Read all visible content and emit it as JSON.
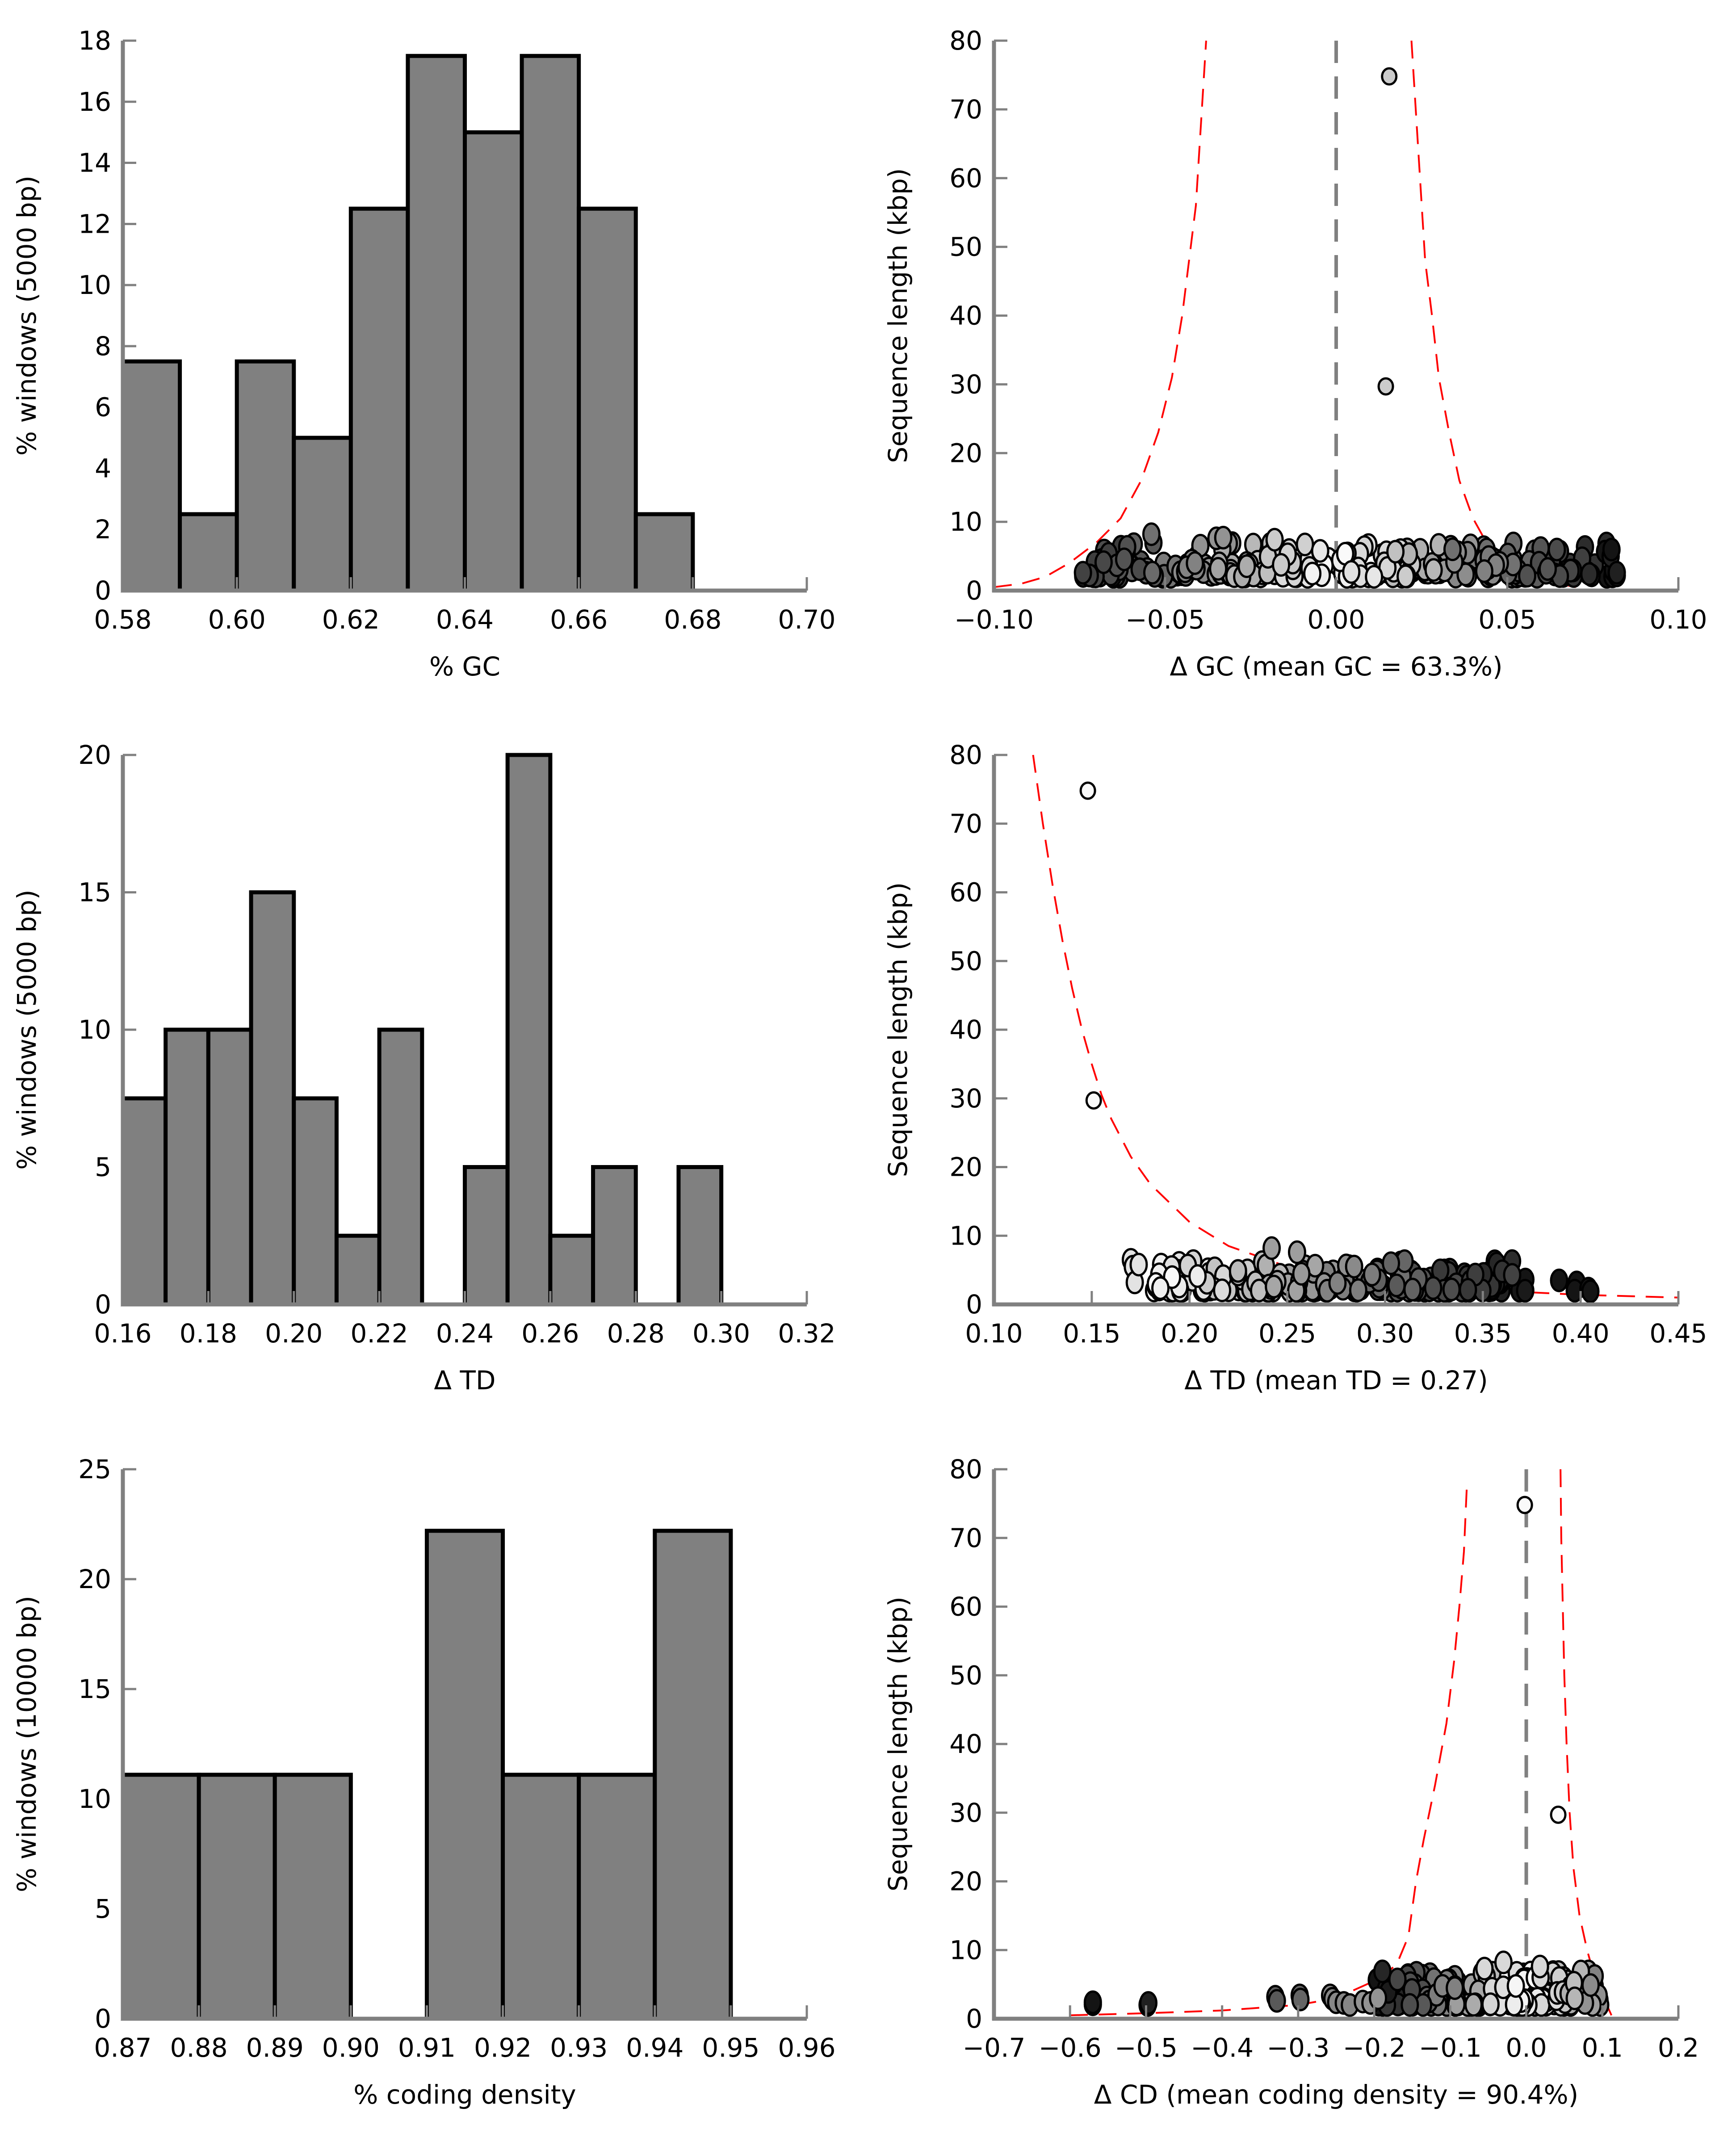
{
  "chart_data": [
    {
      "id": "gc-hist",
      "type": "bar",
      "subtype": "histogram",
      "xlabel": "% GC",
      "ylabel": "% windows (5000 bp)",
      "xlim": [
        0.58,
        0.7
      ],
      "ylim": [
        0,
        18
      ],
      "xticks": [
        "0.58",
        "0.60",
        "0.62",
        "0.64",
        "0.66",
        "0.68",
        "0.70"
      ],
      "xtick_values": [
        0.58,
        0.6,
        0.62,
        0.64,
        0.66,
        0.68,
        0.7
      ],
      "yticks": [
        "0",
        "2",
        "4",
        "6",
        "8",
        "10",
        "12",
        "14",
        "16",
        "18"
      ],
      "ytick_values": [
        0,
        2,
        4,
        6,
        8,
        10,
        12,
        14,
        16,
        18
      ],
      "bin_edges": [
        0.58,
        0.59,
        0.6,
        0.61,
        0.62,
        0.63,
        0.64,
        0.65,
        0.66,
        0.67,
        0.68
      ],
      "values": [
        7.5,
        2.5,
        7.5,
        5.0,
        12.5,
        17.5,
        15.0,
        17.5,
        12.5,
        2.5
      ],
      "bar_color": "#808080",
      "edge_color": "#000000",
      "grid": false
    },
    {
      "id": "gc-scatter",
      "type": "scatter",
      "xlabel": "Δ GC (mean GC = 63.3%)",
      "ylabel": "Sequence length (kbp)",
      "xlim": [
        -0.1,
        0.1
      ],
      "ylim": [
        0,
        80
      ],
      "xticks": [
        "−0.10",
        "−0.05",
        "0.00",
        "0.05",
        "0.10"
      ],
      "xtick_values": [
        -0.1,
        -0.05,
        0.0,
        0.05,
        0.1
      ],
      "yticks": [
        "0",
        "10",
        "20",
        "30",
        "40",
        "50",
        "60",
        "70",
        "80"
      ],
      "ytick_values": [
        0,
        10,
        20,
        30,
        40,
        50,
        60,
        70,
        80
      ],
      "center_line": 0.0,
      "outliers": [
        [
          0.0155,
          74.8,
          0.8
        ],
        [
          0.0145,
          29.7,
          0.8
        ]
      ],
      "cluster": {
        "x_range": [
          -0.074,
          0.082
        ],
        "y_range": [
          2,
          8.2
        ],
        "center": 0.0,
        "count": 260,
        "seed": 11
      },
      "extra_points": [
        [
          -0.054,
          8.2,
          0.4
        ],
        [
          -0.035,
          7.6,
          0.55
        ],
        [
          -0.033,
          7.7,
          0.55
        ],
        [
          -0.018,
          7.4,
          0.8
        ],
        [
          0.034,
          6.0,
          0.4
        ],
        [
          0.074,
          2.4,
          0.1
        ],
        [
          0.082,
          2.2,
          0.05
        ],
        [
          0.082,
          2.6,
          0.05
        ],
        [
          -0.072,
          2.2,
          0.2
        ],
        [
          -0.074,
          2.6,
          0.2
        ]
      ],
      "threshold_curves": [
        {
          "x": [
            -0.1,
            -0.092,
            -0.085,
            -0.078,
            -0.07,
            -0.063,
            -0.057,
            -0.052,
            -0.048,
            -0.045,
            -0.043,
            -0.041,
            -0.04,
            -0.039,
            -0.038
          ],
          "y": [
            0.5,
            1.0,
            2.0,
            4.0,
            7.0,
            10.5,
            16.0,
            23.0,
            31.0,
            40.0,
            48.0,
            56.0,
            64.0,
            72.0,
            80.0
          ]
        },
        {
          "x": [
            0.022,
            0.023,
            0.024,
            0.025,
            0.026,
            0.028,
            0.03,
            0.033,
            0.036,
            0.04,
            0.045,
            0.052,
            0.06,
            0.07
          ],
          "y": [
            80.0,
            72.0,
            64.0,
            56.0,
            48.0,
            40.0,
            31.0,
            23.0,
            16.0,
            10.5,
            6.0,
            3.0,
            1.5,
            0.5
          ]
        }
      ],
      "curve_color": "#ff0000",
      "grid": false
    },
    {
      "id": "td-hist",
      "type": "bar",
      "subtype": "histogram",
      "xlabel": "Δ TD",
      "ylabel": "% windows (5000 bp)",
      "xlim": [
        0.16,
        0.32
      ],
      "ylim": [
        0,
        20
      ],
      "xticks": [
        "0.16",
        "0.18",
        "0.20",
        "0.22",
        "0.24",
        "0.26",
        "0.28",
        "0.30",
        "0.32"
      ],
      "xtick_values": [
        0.16,
        0.18,
        0.2,
        0.22,
        0.24,
        0.26,
        0.28,
        0.3,
        0.32
      ],
      "yticks": [
        "0",
        "5",
        "10",
        "15",
        "20"
      ],
      "ytick_values": [
        0,
        5,
        10,
        15,
        20
      ],
      "bin_edges": [
        0.16,
        0.17,
        0.18,
        0.19,
        0.2,
        0.21,
        0.22,
        0.23,
        0.24,
        0.25,
        0.26,
        0.27,
        0.28,
        0.29,
        0.3
      ],
      "values": [
        7.5,
        10.0,
        10.0,
        15.0,
        7.5,
        2.5,
        10.0,
        0,
        5.0,
        20.0,
        2.5,
        5.0,
        0,
        5.0
      ],
      "bar_color": "#808080",
      "edge_color": "#000000",
      "grid": false
    },
    {
      "id": "td-scatter",
      "type": "scatter",
      "xlabel": "Δ TD (mean TD = 0.27)",
      "ylabel": "Sequence length (kbp)",
      "xlim": [
        0.1,
        0.45
      ],
      "ylim": [
        0,
        80
      ],
      "xticks": [
        "0.10",
        "0.15",
        "0.20",
        "0.25",
        "0.30",
        "0.35",
        "0.40",
        "0.45"
      ],
      "xtick_values": [
        0.1,
        0.15,
        0.2,
        0.25,
        0.3,
        0.35,
        0.4,
        0.45
      ],
      "yticks": [
        "0",
        "10",
        "20",
        "30",
        "40",
        "50",
        "60",
        "70",
        "80"
      ],
      "ytick_values": [
        0,
        10,
        20,
        30,
        40,
        50,
        60,
        70,
        80
      ],
      "center_line": null,
      "outliers": [
        [
          0.148,
          74.8,
          1.0
        ],
        [
          0.151,
          29.7,
          1.0
        ]
      ],
      "cluster": {
        "x_range": [
          0.18,
          0.372
        ],
        "y_range": [
          2,
          7.5
        ],
        "center": null,
        "count": 230,
        "seed": 23
      },
      "extra_points": [
        [
          0.17,
          6.5,
          0.9
        ],
        [
          0.171,
          5.5,
          0.9
        ],
        [
          0.172,
          3.2,
          0.9
        ],
        [
          0.174,
          5.8,
          0.9
        ],
        [
          0.242,
          8.2,
          0.6
        ],
        [
          0.255,
          7.6,
          0.6
        ],
        [
          0.303,
          6.0,
          0.35
        ],
        [
          0.365,
          4.3,
          0.2
        ],
        [
          0.389,
          3.5,
          0.0
        ],
        [
          0.398,
          3.2,
          0.0
        ],
        [
          0.397,
          2.0,
          0.0
        ],
        [
          0.404,
          2.3,
          0.0
        ],
        [
          0.405,
          1.9,
          0.0
        ]
      ],
      "threshold_curves": [
        {
          "x": [
            0.12,
            0.125,
            0.13,
            0.135,
            0.14,
            0.145,
            0.15,
            0.155,
            0.16,
            0.17,
            0.18,
            0.2,
            0.22,
            0.25,
            0.3,
            0.35,
            0.4,
            0.45
          ],
          "y": [
            80.0,
            70.0,
            61.0,
            53.0,
            46.0,
            40.0,
            35.0,
            30.5,
            27.0,
            21.5,
            17.5,
            12.0,
            8.5,
            5.5,
            3.2,
            2.1,
            1.4,
            1.0
          ]
        }
      ],
      "curve_color": "#ff0000",
      "grid": false
    },
    {
      "id": "cd-hist",
      "type": "bar",
      "subtype": "histogram",
      "xlabel": "% coding density",
      "ylabel": "% windows (10000 bp)",
      "xlim": [
        0.87,
        0.96
      ],
      "ylim": [
        0,
        25
      ],
      "xticks": [
        "0.87",
        "0.88",
        "0.89",
        "0.90",
        "0.91",
        "0.92",
        "0.93",
        "0.94",
        "0.95",
        "0.96"
      ],
      "xtick_values": [
        0.87,
        0.88,
        0.89,
        0.9,
        0.91,
        0.92,
        0.93,
        0.94,
        0.95,
        0.96
      ],
      "yticks": [
        "0",
        "5",
        "10",
        "15",
        "20",
        "25"
      ],
      "ytick_values": [
        0,
        5,
        10,
        15,
        20,
        25
      ],
      "bin_edges": [
        0.87,
        0.88,
        0.89,
        0.9,
        0.91,
        0.92,
        0.93,
        0.94,
        0.95
      ],
      "values": [
        11.1,
        11.1,
        11.1,
        0,
        22.2,
        11.1,
        11.1,
        22.2
      ],
      "bar_color": "#808080",
      "edge_color": "#000000",
      "grid": false
    },
    {
      "id": "cd-scatter",
      "type": "scatter",
      "xlabel": "Δ CD (mean coding density = 90.4%)",
      "ylabel": "Sequence length (kbp)",
      "xlim": [
        -0.7,
        0.2
      ],
      "ylim": [
        0,
        80
      ],
      "xticks": [
        "−0.7",
        "−0.6",
        "−0.5",
        "−0.4",
        "−0.3",
        "−0.2",
        "−0.1",
        "0.0",
        "0.1",
        "0.2"
      ],
      "xtick_values": [
        -0.7,
        -0.6,
        -0.5,
        -0.4,
        -0.3,
        -0.2,
        -0.1,
        0.0,
        0.1,
        0.2
      ],
      "yticks": [
        "0",
        "10",
        "20",
        "30",
        "40",
        "50",
        "60",
        "70",
        "80"
      ],
      "ytick_values": [
        0,
        10,
        20,
        30,
        40,
        50,
        60,
        70,
        80
      ],
      "center_line": 0.0,
      "outliers": [
        [
          -0.002,
          74.8,
          1.0
        ],
        [
          0.042,
          29.7,
          1.0
        ]
      ],
      "cluster": {
        "x_range": [
          -0.2,
          0.098
        ],
        "y_range": [
          2,
          8.2
        ],
        "center": 0.0,
        "count": 220,
        "seed": 37
      },
      "extra_points": [
        [
          -0.57,
          2.1,
          0.0
        ],
        [
          -0.57,
          2.4,
          0.0
        ],
        [
          -0.498,
          2.0,
          0.05
        ],
        [
          -0.497,
          2.3,
          0.05
        ],
        [
          -0.33,
          3.2,
          0.3
        ],
        [
          -0.328,
          2.6,
          0.3
        ],
        [
          -0.298,
          3.4,
          0.35
        ],
        [
          -0.297,
          2.8,
          0.35
        ],
        [
          -0.258,
          3.4,
          0.5
        ],
        [
          -0.255,
          2.9,
          0.5
        ],
        [
          -0.25,
          2.4,
          0.5
        ],
        [
          -0.24,
          2.3,
          0.5
        ],
        [
          -0.232,
          2.0,
          0.5
        ],
        [
          -0.215,
          2.5,
          0.55
        ],
        [
          -0.205,
          2.3,
          0.55
        ],
        [
          -0.195,
          3.0,
          0.55
        ],
        [
          -0.03,
          8.2,
          0.85
        ],
        [
          0.018,
          7.6,
          0.85
        ],
        [
          -0.055,
          7.3,
          0.85
        ]
      ],
      "threshold_curves": [
        {
          "x": [
            -0.6,
            -0.5,
            -0.4,
            -0.3,
            -0.25,
            -0.22,
            -0.19,
            -0.17,
            -0.155,
            -0.145,
            -0.135,
            -0.12,
            -0.105,
            -0.095,
            -0.088,
            -0.082,
            -0.078
          ],
          "y": [
            0.5,
            0.8,
            1.2,
            2.0,
            3.0,
            4.5,
            6.0,
            8.0,
            12.0,
            20.0,
            26.0,
            34.0,
            43.0,
            52.0,
            60.0,
            68.0,
            78.0
          ]
        },
        {
          "x": [
            0.045,
            0.046,
            0.048,
            0.05,
            0.053,
            0.057,
            0.062,
            0.07,
            0.08,
            0.09,
            0.1,
            0.108,
            0.112
          ],
          "y": [
            80.0,
            70.0,
            60.0,
            50.0,
            40.0,
            30.0,
            22.0,
            15.0,
            10.0,
            6.0,
            3.5,
            1.5,
            0.5
          ]
        }
      ],
      "curve_color": "#ff0000",
      "grid": false
    }
  ]
}
